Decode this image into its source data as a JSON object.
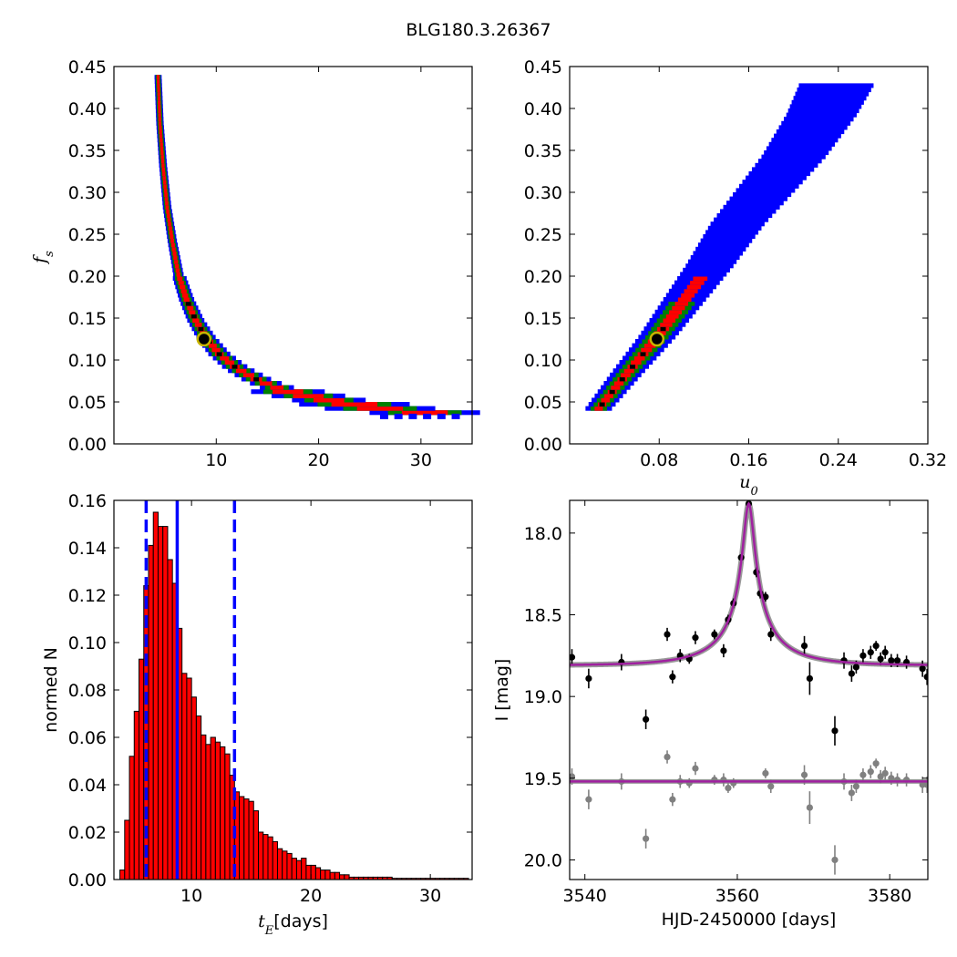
{
  "figure": {
    "title": "BLG180.3.26367",
    "colors": {
      "outer": "#0000ff",
      "mid": "#008000",
      "inner": "#ff0000",
      "core": "#000000",
      "best": "#c8b400",
      "model": "#a020a0",
      "baseline": "#808080"
    }
  },
  "chart_data": [
    {
      "id": "fs_vs_tE",
      "type": "heatmap",
      "title": "",
      "xlabel": "",
      "ylabel": "f_s",
      "xlim": [
        0,
        35
      ],
      "ylim": [
        0,
        0.45
      ],
      "xticks": [
        "10",
        "20",
        "30"
      ],
      "yticks": [
        "0.00",
        "0.05",
        "0.10",
        "0.15",
        "0.20",
        "0.25",
        "0.30",
        "0.35",
        "0.40",
        "0.45"
      ],
      "best_fit": {
        "x": 8.8,
        "y": 0.125
      },
      "contours": {
        "ridge_x": [
          4.3,
          4.5,
          4.8,
          5.2,
          5.7,
          6.3,
          7.1,
          8.0,
          9.0,
          10.3,
          12.0,
          14.2,
          17.0,
          21.0,
          26.0,
          33.0
        ],
        "ridge_y": [
          0.44,
          0.38,
          0.33,
          0.28,
          0.24,
          0.2,
          0.17,
          0.145,
          0.125,
          0.105,
          0.088,
          0.073,
          0.06,
          0.05,
          0.04,
          0.032
        ]
      }
    },
    {
      "id": "fs_vs_u0",
      "type": "heatmap",
      "title": "",
      "xlabel": "u_0",
      "ylabel": "",
      "xlim": [
        0,
        0.32
      ],
      "ylim": [
        0,
        0.45
      ],
      "xticks": [
        "0.08",
        "0.16",
        "0.24",
        "0.32"
      ],
      "yticks": [
        "0.00",
        "0.05",
        "0.10",
        "0.15",
        "0.20",
        "0.25",
        "0.30",
        "0.35",
        "0.40",
        "0.45"
      ],
      "best_fit": {
        "x": 0.078,
        "y": 0.125
      },
      "contours": {
        "ridge_x": [
          0.023,
          0.05,
          0.078,
          0.1,
          0.125,
          0.15,
          0.175,
          0.2,
          0.225,
          0.24
        ],
        "ridge_y": [
          0.035,
          0.08,
          0.125,
          0.165,
          0.21,
          0.26,
          0.3,
          0.34,
          0.39,
          0.43
        ]
      }
    },
    {
      "id": "tE_histogram",
      "type": "bar",
      "title": "",
      "xlabel": "[days]",
      "xlabel_symbol": "t_E",
      "ylabel": "normed N",
      "xlim": [
        3.5,
        33.5
      ],
      "ylim": [
        0,
        0.16
      ],
      "xticks": [
        "10",
        "20",
        "30"
      ],
      "yticks": [
        "0.00",
        "0.02",
        "0.04",
        "0.06",
        "0.08",
        "0.10",
        "0.12",
        "0.14",
        "0.16"
      ],
      "bin_start": 4.0,
      "bin_width": 0.4,
      "values": [
        0.004,
        0.025,
        0.052,
        0.071,
        0.093,
        0.124,
        0.141,
        0.155,
        0.149,
        0.149,
        0.135,
        0.125,
        0.106,
        0.087,
        0.085,
        0.077,
        0.069,
        0.061,
        0.057,
        0.06,
        0.058,
        0.056,
        0.053,
        0.044,
        0.037,
        0.035,
        0.034,
        0.033,
        0.029,
        0.02,
        0.019,
        0.018,
        0.016,
        0.013,
        0.012,
        0.011,
        0.009,
        0.008,
        0.009,
        0.006,
        0.006,
        0.005,
        0.004,
        0.004,
        0.003,
        0.003,
        0.002,
        0.002,
        0.001,
        0.001,
        0.001,
        0.001,
        0.001,
        0.001,
        0.001,
        0.001,
        0.001,
        0.0005,
        0.0005,
        0.0005,
        0.0005,
        0.0005,
        0.0005,
        0.0005,
        0.0005,
        0.0005,
        0.0005,
        0.0005,
        0.0005,
        0.0005,
        0.0005,
        0.0005,
        0.0005
      ],
      "vlines": {
        "median": 8.8,
        "lower": 6.2,
        "upper": 13.6
      }
    },
    {
      "id": "light_curve",
      "type": "scatter",
      "title": "",
      "xlabel": "HJD-2450000 [days]",
      "ylabel": "I [mag]",
      "xlim": [
        3538,
        3585
      ],
      "ylim": [
        20.12,
        17.8
      ],
      "y_inverted": true,
      "xticks": [
        "3540",
        "3560",
        "3580"
      ],
      "yticks": [
        "18.0",
        "18.5",
        "19.0",
        "19.5",
        "20.0"
      ],
      "model": {
        "t0": 3561.5,
        "baseline_mag": 18.81,
        "peak_mag": 17.82,
        "u0": 0.078,
        "tE": 8.8,
        "fs": 0.125
      },
      "residual_baseline_mag": 19.52,
      "series": [
        {
          "points": [
            {
              "x": 3538.3,
              "y": 18.76,
              "err": 0.05
            },
            {
              "x": 3540.5,
              "y": 18.89,
              "err": 0.06
            },
            {
              "x": 3544.8,
              "y": 18.79,
              "err": 0.05
            },
            {
              "x": 3548.0,
              "y": 19.14,
              "err": 0.06
            },
            {
              "x": 3550.8,
              "y": 18.62,
              "err": 0.04
            },
            {
              "x": 3551.5,
              "y": 18.88,
              "err": 0.04
            },
            {
              "x": 3552.5,
              "y": 18.75,
              "err": 0.04
            },
            {
              "x": 3553.7,
              "y": 18.77,
              "err": 0.03
            },
            {
              "x": 3554.5,
              "y": 18.64,
              "err": 0.04
            },
            {
              "x": 3557.0,
              "y": 18.62,
              "err": 0.03
            },
            {
              "x": 3558.2,
              "y": 18.72,
              "err": 0.04
            },
            {
              "x": 3558.8,
              "y": 18.53,
              "err": 0.03
            },
            {
              "x": 3559.5,
              "y": 18.43,
              "err": 0.03
            },
            {
              "x": 3560.5,
              "y": 18.15,
              "err": 0.02
            },
            {
              "x": 3561.5,
              "y": 17.82,
              "err": 0.02
            },
            {
              "x": 3562.5,
              "y": 18.24,
              "err": 0.03
            },
            {
              "x": 3563.0,
              "y": 18.37,
              "err": 0.03
            },
            {
              "x": 3563.7,
              "y": 18.39,
              "err": 0.03
            },
            {
              "x": 3564.4,
              "y": 18.62,
              "err": 0.04
            },
            {
              "x": 3568.8,
              "y": 18.69,
              "err": 0.06
            },
            {
              "x": 3569.5,
              "y": 18.89,
              "err": 0.1
            },
            {
              "x": 3572.8,
              "y": 19.21,
              "err": 0.09
            },
            {
              "x": 3574.0,
              "y": 18.78,
              "err": 0.05
            },
            {
              "x": 3575.0,
              "y": 18.86,
              "err": 0.05
            },
            {
              "x": 3575.6,
              "y": 18.82,
              "err": 0.04
            },
            {
              "x": 3576.5,
              "y": 18.75,
              "err": 0.04
            },
            {
              "x": 3577.5,
              "y": 18.73,
              "err": 0.04
            },
            {
              "x": 3578.2,
              "y": 18.69,
              "err": 0.03
            },
            {
              "x": 3578.8,
              "y": 18.77,
              "err": 0.04
            },
            {
              "x": 3579.4,
              "y": 18.73,
              "err": 0.04
            },
            {
              "x": 3580.2,
              "y": 18.78,
              "err": 0.04
            },
            {
              "x": 3581.0,
              "y": 18.78,
              "err": 0.04
            },
            {
              "x": 3582.2,
              "y": 18.79,
              "err": 0.04
            },
            {
              "x": 3584.3,
              "y": 18.83,
              "err": 0.05
            },
            {
              "x": 3584.9,
              "y": 18.88,
              "err": 0.05
            }
          ]
        },
        {
          "points": [
            {
              "x": 3538.3,
              "y": 19.49,
              "err": 0.05
            },
            {
              "x": 3540.5,
              "y": 19.63,
              "err": 0.06
            },
            {
              "x": 3544.8,
              "y": 19.52,
              "err": 0.05
            },
            {
              "x": 3548.0,
              "y": 19.87,
              "err": 0.06
            },
            {
              "x": 3550.8,
              "y": 19.37,
              "err": 0.04
            },
            {
              "x": 3551.5,
              "y": 19.63,
              "err": 0.04
            },
            {
              "x": 3552.5,
              "y": 19.52,
              "err": 0.04
            },
            {
              "x": 3553.7,
              "y": 19.53,
              "err": 0.03
            },
            {
              "x": 3554.5,
              "y": 19.44,
              "err": 0.04
            },
            {
              "x": 3557.0,
              "y": 19.51,
              "err": 0.03
            },
            {
              "x": 3558.2,
              "y": 19.51,
              "err": 0.04
            },
            {
              "x": 3558.8,
              "y": 19.56,
              "err": 0.03
            },
            {
              "x": 3559.5,
              "y": 19.53,
              "err": 0.03
            },
            {
              "x": 3563.7,
              "y": 19.47,
              "err": 0.03
            },
            {
              "x": 3564.4,
              "y": 19.55,
              "err": 0.04
            },
            {
              "x": 3568.8,
              "y": 19.48,
              "err": 0.06
            },
            {
              "x": 3569.5,
              "y": 19.68,
              "err": 0.1
            },
            {
              "x": 3572.8,
              "y": 20.0,
              "err": 0.09
            },
            {
              "x": 3574.0,
              "y": 19.52,
              "err": 0.05
            },
            {
              "x": 3575.0,
              "y": 19.59,
              "err": 0.05
            },
            {
              "x": 3575.6,
              "y": 19.55,
              "err": 0.04
            },
            {
              "x": 3576.5,
              "y": 19.48,
              "err": 0.04
            },
            {
              "x": 3577.5,
              "y": 19.46,
              "err": 0.04
            },
            {
              "x": 3578.2,
              "y": 19.41,
              "err": 0.03
            },
            {
              "x": 3578.8,
              "y": 19.49,
              "err": 0.04
            },
            {
              "x": 3579.4,
              "y": 19.47,
              "err": 0.04
            },
            {
              "x": 3580.2,
              "y": 19.5,
              "err": 0.04
            },
            {
              "x": 3581.0,
              "y": 19.51,
              "err": 0.04
            },
            {
              "x": 3582.2,
              "y": 19.51,
              "err": 0.04
            },
            {
              "x": 3584.3,
              "y": 19.54,
              "err": 0.05
            },
            {
              "x": 3584.9,
              "y": 19.54,
              "err": 0.05
            }
          ]
        }
      ]
    }
  ]
}
